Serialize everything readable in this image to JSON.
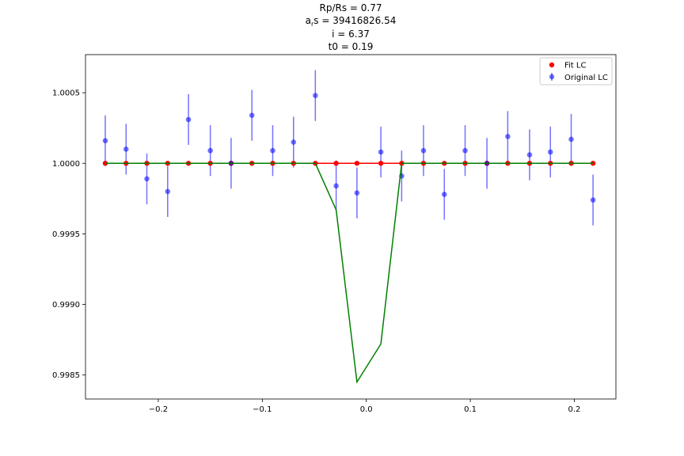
{
  "chart_data": {
    "type": "scatter",
    "title_lines": [
      "Rp/Rs = 0.77",
      "a_rs = 39416826.54",
      "i = 6.37",
      "t0 = 0.19"
    ],
    "xlim": [
      -0.27,
      0.24
    ],
    "ylim": [
      0.99833,
      1.00077
    ],
    "x_ticks": [
      -0.2,
      -0.1,
      0.0,
      0.1,
      0.2
    ],
    "x_tick_labels": [
      "−0.2",
      "−0.1",
      "0.0",
      "0.1",
      "0.2"
    ],
    "y_ticks": [
      0.9985,
      0.999,
      0.9995,
      1.0,
      1.0005
    ],
    "y_tick_labels": [
      "0.9985",
      "0.9990",
      "0.9995",
      "1.0000",
      "1.0005"
    ],
    "grid": false,
    "legend_position": "top-right",
    "colors": {
      "fit_points": "#ff0000",
      "fit_line": "#ff0000",
      "original_points": "#0000ff",
      "model_line": "#008000"
    },
    "series": [
      {
        "name": "Fit LC",
        "kind": "points-with-line",
        "x": [
          -0.251,
          -0.231,
          -0.211,
          -0.191,
          -0.171,
          -0.15,
          -0.13,
          -0.11,
          -0.09,
          -0.07,
          -0.049,
          -0.029,
          -0.009,
          0.014,
          0.034,
          0.055,
          0.075,
          0.095,
          0.116,
          0.136,
          0.157,
          0.177,
          0.197,
          0.218
        ],
        "y": [
          1.0,
          1.0,
          1.0,
          1.0,
          1.0,
          1.0,
          1.0,
          1.0,
          1.0,
          1.0,
          1.0,
          1.0,
          1.0,
          1.0,
          1.0,
          1.0,
          1.0,
          1.0,
          1.0,
          1.0,
          1.0,
          1.0,
          1.0,
          1.0
        ]
      },
      {
        "name": "Original LC",
        "kind": "errorbar",
        "x": [
          -0.251,
          -0.231,
          -0.211,
          -0.191,
          -0.171,
          -0.15,
          -0.13,
          -0.11,
          -0.09,
          -0.07,
          -0.049,
          -0.029,
          -0.009,
          0.014,
          0.034,
          0.055,
          0.075,
          0.095,
          0.116,
          0.136,
          0.157,
          0.177,
          0.197,
          0.218
        ],
        "y": [
          1.00016,
          1.0001,
          0.99989,
          0.9998,
          1.00031,
          1.00009,
          1.0,
          1.00034,
          1.00009,
          1.00015,
          1.00048,
          0.99984,
          0.99979,
          1.00008,
          0.99991,
          1.00009,
          0.99978,
          1.00009,
          1.0,
          1.00019,
          1.00006,
          1.00008,
          1.00017,
          0.99974
        ],
        "yerr": 0.00018
      },
      {
        "kind": "line",
        "x": [
          -0.251,
          -0.231,
          -0.211,
          -0.191,
          -0.171,
          -0.15,
          -0.13,
          -0.11,
          -0.09,
          -0.07,
          -0.049,
          -0.029,
          -0.009,
          0.014,
          0.034,
          0.055,
          0.075,
          0.095,
          0.116,
          0.136,
          0.157,
          0.177,
          0.197,
          0.218
        ],
        "y": [
          1.0,
          1.0,
          1.0,
          1.0,
          1.0,
          1.0,
          1.0,
          1.0,
          1.0,
          1.0,
          1.0,
          0.99967,
          0.99845,
          0.99872,
          1.0,
          1.0,
          1.0,
          1.0,
          1.0,
          1.0,
          1.0,
          1.0,
          1.0,
          1.0
        ]
      }
    ],
    "legend": [
      {
        "label": "Fit LC",
        "marker": "dot",
        "color": "#ff0000"
      },
      {
        "label": "Original LC",
        "marker": "errorbar-dot",
        "color": "#0000ff"
      }
    ]
  }
}
